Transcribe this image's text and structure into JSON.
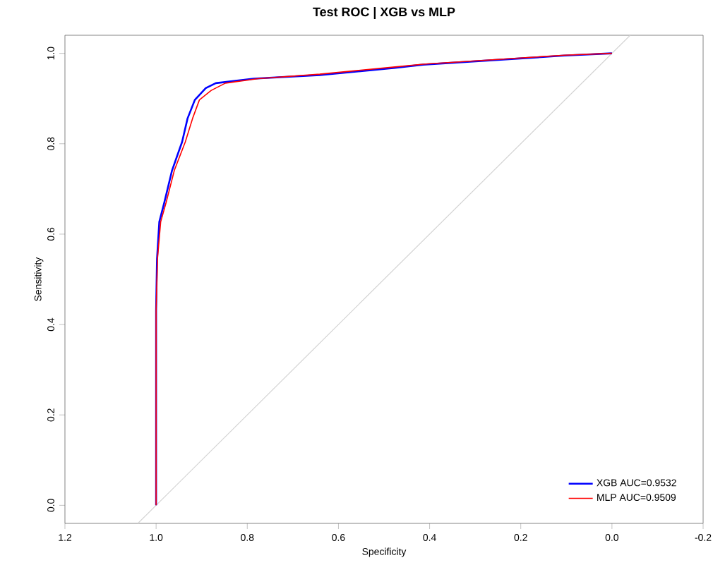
{
  "chart_data": {
    "type": "line",
    "title": "Test ROC | XGB vs MLP",
    "xlabel": "Specificity",
    "ylabel": "Sensitivity",
    "xlim": [
      1.2,
      -0.2
    ],
    "ylim": [
      -0.04,
      1.04
    ],
    "xticks": [
      1.2,
      {
        "value": 1.0,
        "label": "1.0"
      },
      0.8,
      0.6,
      0.4,
      0.2,
      {
        "value": 0.0,
        "label": "0.0"
      },
      -0.2
    ],
    "yticks": [
      {
        "value": 0.0,
        "label": "0.0"
      },
      0.2,
      0.4,
      0.6,
      0.8,
      {
        "value": 1.0,
        "label": "1.0"
      }
    ],
    "grid": false,
    "legend": "bottom right",
    "marker": "none",
    "line_style": "solid",
    "series": [
      {
        "color": "#d3d3d3",
        "x": [
          1.04,
          -0.04
        ],
        "values": [
          -0.04,
          1.04
        ]
      },
      {
        "name": "XGB AUC=0.9532",
        "color": "#0000ff",
        "x": [
          1.0,
          1.0,
          0.998,
          0.993,
          0.982,
          0.965,
          0.943,
          0.931,
          0.915,
          0.891,
          0.869,
          0.786,
          0.641,
          0.476,
          0.414,
          0.104,
          0.0
        ],
        "values": [
          0.0,
          0.43,
          0.545,
          0.627,
          0.67,
          0.741,
          0.804,
          0.856,
          0.897,
          0.923,
          0.934,
          0.944,
          0.952,
          0.968,
          0.975,
          0.995,
          1.0
        ]
      },
      {
        "name": "MLP AUC=0.9509",
        "color": "#ff0000",
        "x": [
          1.0,
          1.0,
          0.997,
          0.99,
          0.978,
          0.96,
          0.936,
          0.92,
          0.905,
          0.879,
          0.848,
          0.776,
          0.641,
          0.476,
          0.414,
          0.104,
          0.0
        ],
        "values": [
          0.0,
          0.43,
          0.545,
          0.627,
          0.67,
          0.741,
          0.804,
          0.856,
          0.897,
          0.918,
          0.934,
          0.944,
          0.954,
          0.97,
          0.976,
          0.996,
          1.0
        ]
      }
    ]
  }
}
